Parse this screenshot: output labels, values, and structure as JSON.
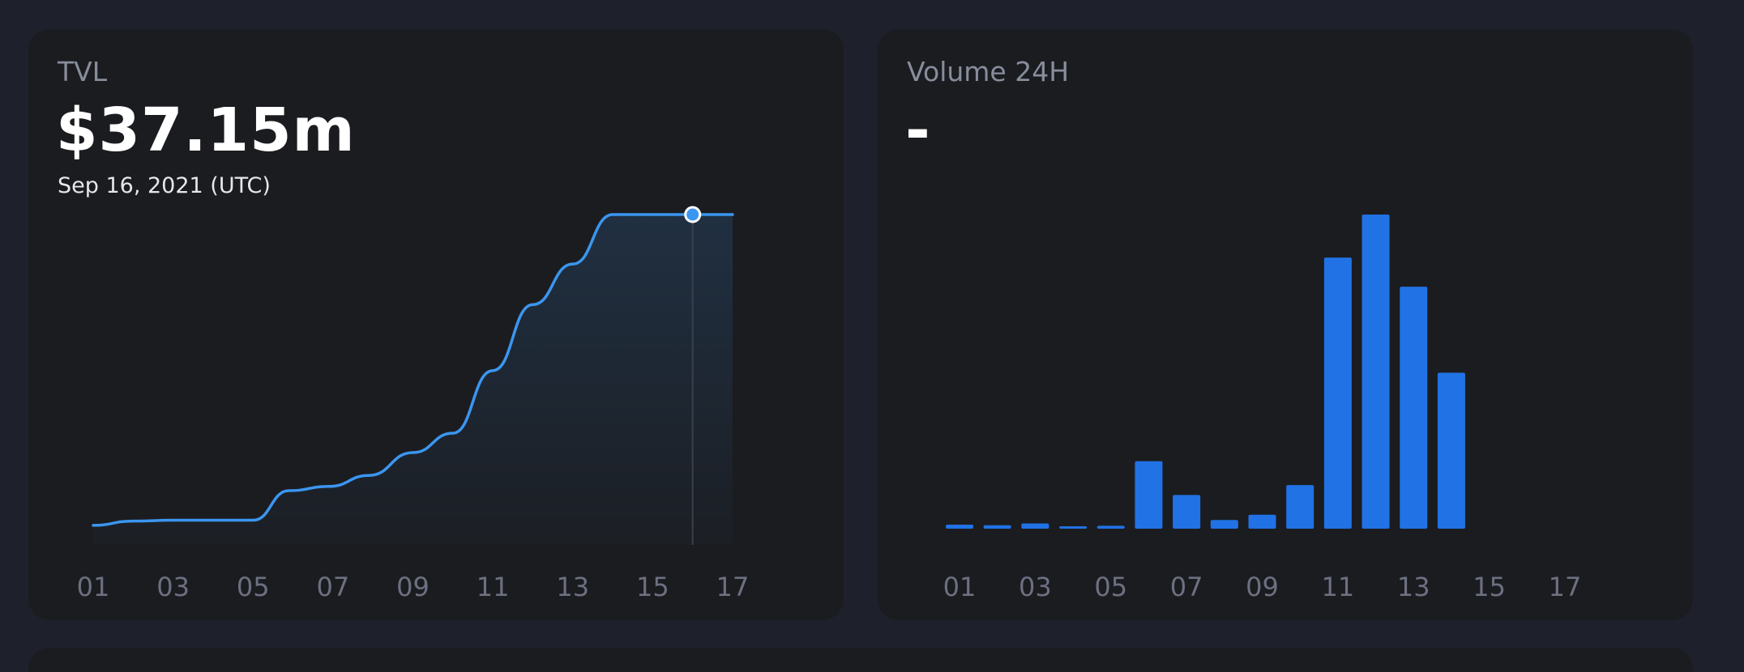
{
  "tvl_card": {
    "label": "TVL",
    "value": "$37.15m",
    "date": "Sep 16, 2021 (UTC)"
  },
  "volume_card": {
    "label": "Volume 24H",
    "value": "-"
  },
  "colors": {
    "line": "#3b96f0",
    "bar": "#2172e5",
    "tick": "#6c7080",
    "card": "#1b1c20",
    "page": "#1e212b"
  },
  "chart_data": [
    {
      "type": "area",
      "x_ticks": [
        "01",
        "03",
        "05",
        "07",
        "09",
        "11",
        "13",
        "15",
        "17"
      ],
      "x": [
        1,
        2,
        3,
        4,
        5,
        5.9,
        6.9,
        7.9,
        9,
        10,
        11,
        12,
        13,
        14,
        15,
        16,
        17
      ],
      "values": [
        0.4,
        0.9,
        1.0,
        1.0,
        1.0,
        4.5,
        5.0,
        6.3,
        9.0,
        11.3,
        18.7,
        26.5,
        31.3,
        37.15,
        37.15,
        37.15,
        37.15
      ],
      "unit": "$m",
      "highlight_x": 16,
      "ylim": [
        0,
        40
      ],
      "grid": false
    },
    {
      "type": "bar",
      "x_ticks": [
        "01",
        "03",
        "05",
        "07",
        "09",
        "11",
        "13",
        "15",
        "17"
      ],
      "x": [
        1,
        2,
        3,
        4,
        5,
        6,
        7,
        8,
        9,
        10,
        11,
        12,
        13,
        14
      ],
      "values": [
        0.35,
        0.3,
        0.45,
        0.15,
        0.25,
        5.8,
        2.9,
        0.75,
        1.2,
        3.75,
        23.3,
        27.0,
        20.8,
        13.4
      ],
      "ylim": [
        0,
        27
      ],
      "grid": false
    }
  ]
}
